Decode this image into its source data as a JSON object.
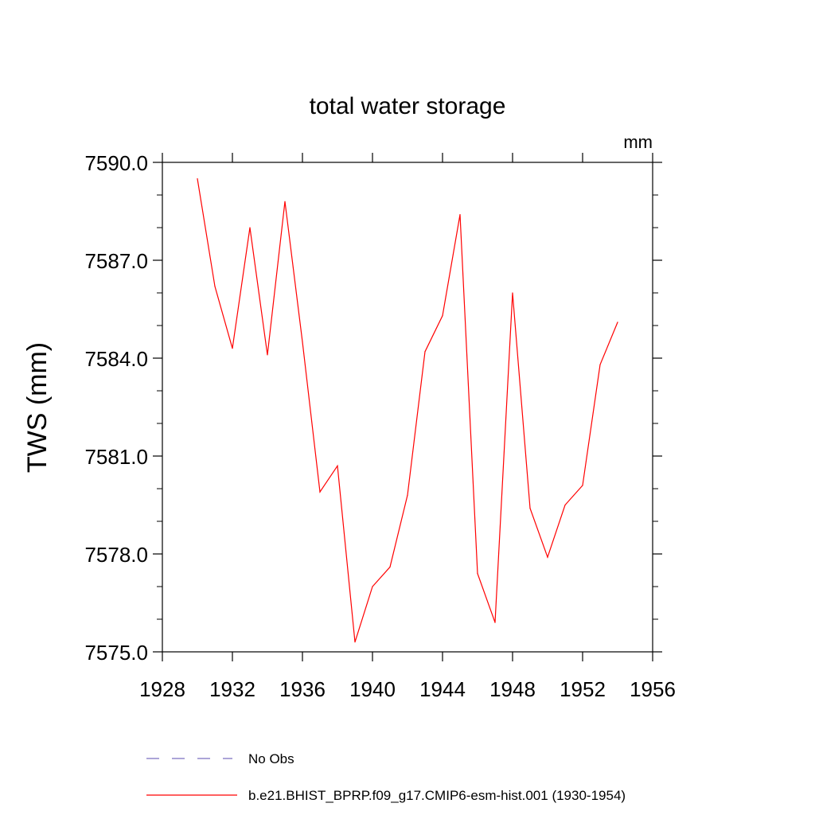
{
  "chart_data": {
    "type": "line",
    "title": "total water storage",
    "units_label": "mm",
    "ylabel": "TWS  (mm)",
    "xlabel": "",
    "xlim": [
      1928,
      1956
    ],
    "ylim": [
      7575.0,
      7590.0
    ],
    "x_ticks": [
      1928,
      1932,
      1936,
      1940,
      1944,
      1948,
      1952,
      1956
    ],
    "y_ticks": [
      "7575.0",
      "7578.0",
      "7581.0",
      "7584.0",
      "7587.0",
      "7590.0"
    ],
    "y_tick_values": [
      7575.0,
      7578.0,
      7581.0,
      7584.0,
      7587.0,
      7590.0
    ],
    "grid": false,
    "series": [
      {
        "name": "b.e21.BHIST_BPRP.f09_g17.CMIP6-esm-hist.001 (1930-1954)",
        "color": "#ff0000",
        "style": "solid",
        "x": [
          1930,
          1931,
          1932,
          1933,
          1934,
          1935,
          1936,
          1937,
          1938,
          1939,
          1940,
          1941,
          1942,
          1943,
          1944,
          1945,
          1946,
          1947,
          1948,
          1949,
          1950,
          1951,
          1952,
          1953,
          1954
        ],
        "values": [
          7589.5,
          7586.2,
          7584.3,
          7588.0,
          7584.1,
          7588.8,
          7584.5,
          7579.9,
          7580.7,
          7575.3,
          7577.0,
          7577.6,
          7579.8,
          7584.2,
          7585.3,
          7588.4,
          7577.4,
          7575.9,
          7586.0,
          7579.4,
          7577.9,
          7579.5,
          7580.1,
          7583.8,
          7585.1
        ]
      }
    ],
    "legend": {
      "placement": "bottom",
      "entries": [
        {
          "label": "No Obs",
          "color": "#7b6fc0",
          "style": "dashed"
        },
        {
          "label": "b.e21.BHIST_BPRP.f09_g17.CMIP6-esm-hist.001 (1930-1954)",
          "color": "#ff0000",
          "style": "solid"
        }
      ]
    }
  }
}
